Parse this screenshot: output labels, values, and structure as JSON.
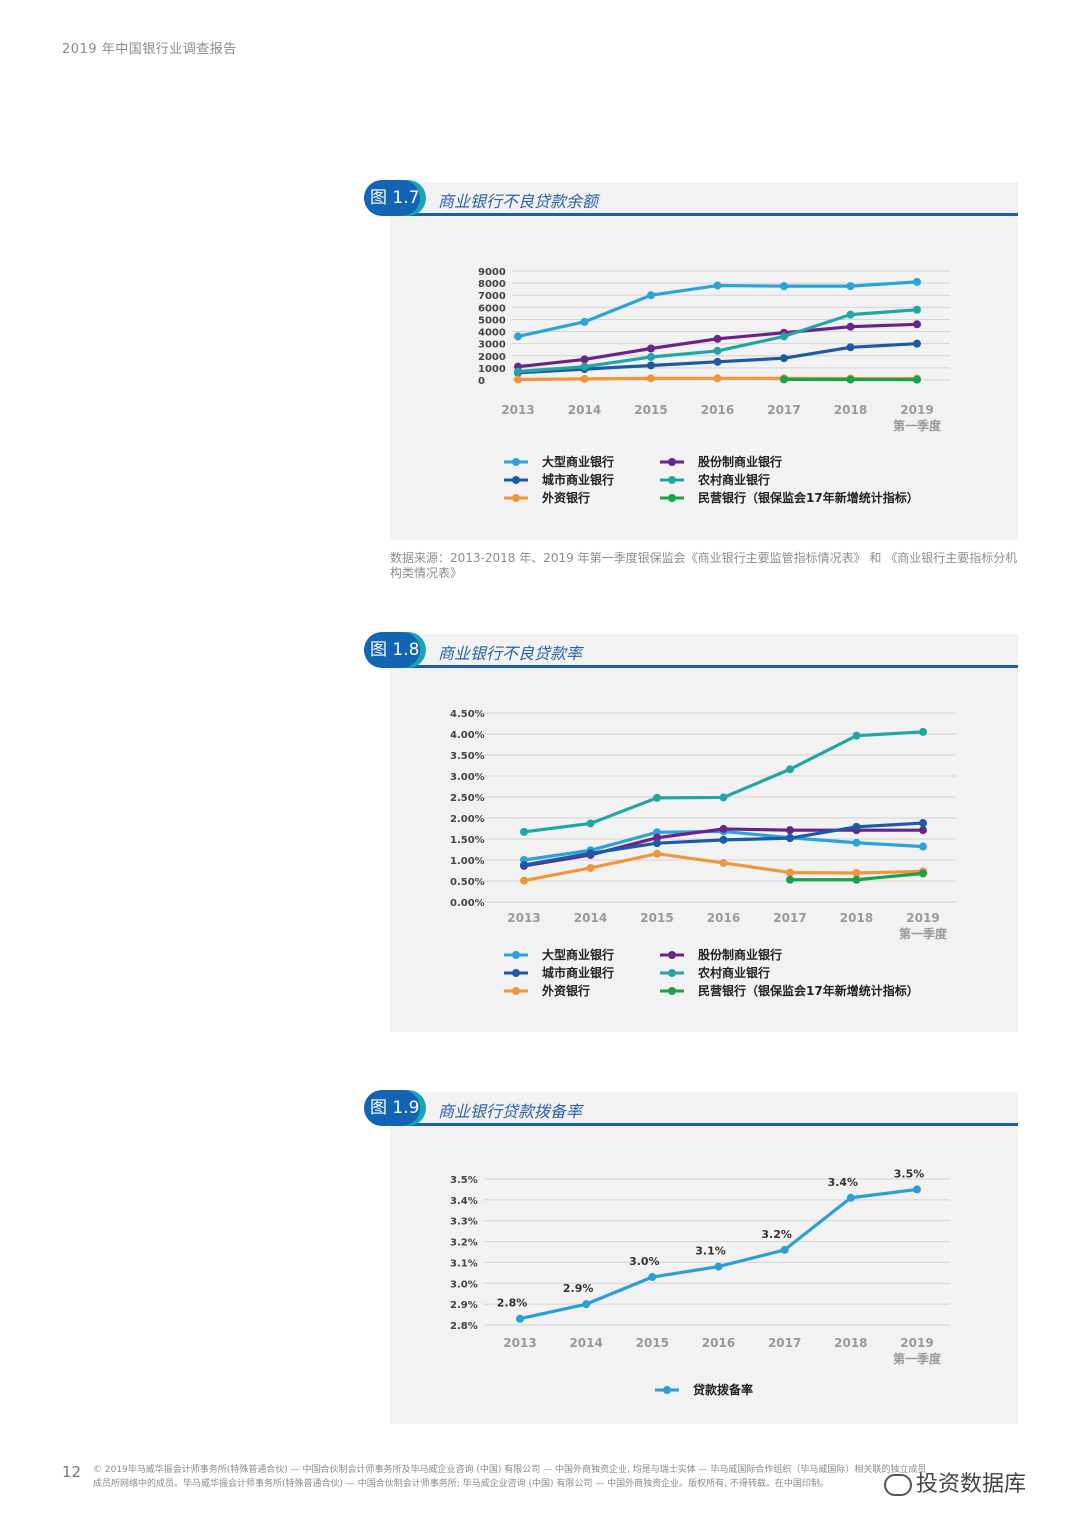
{
  "header": {
    "title": "2019 年中国银行业调查报告"
  },
  "figures": [
    {
      "badge": "图 1.7",
      "title": "商业银行不良贷款余额",
      "source": "数据来源：2013-2018 年、2019 年第一季度银保监会《商业银行主要监管指标情况表》 和 《商业银行主要指标分机构类情况表》"
    },
    {
      "badge": "图 1.8",
      "title": "商业银行不良贷款率"
    },
    {
      "badge": "图 1.9",
      "title": "商业银行贷款拨备率"
    }
  ],
  "colors": {
    "large": "#29a3d9",
    "city": "#1c5aa6",
    "foreign": "#f0963a",
    "joint": "#6b2389",
    "rural": "#21a7a3",
    "private": "#17a34a",
    "provision": "#2b9ed8"
  },
  "chart_data": [
    {
      "type": "line",
      "title": "商业银行不良贷款余额",
      "x": [
        "2013",
        "2014",
        "2015",
        "2016",
        "2017",
        "2018",
        "2019\n第一季度"
      ],
      "y_ticks": [
        "9000",
        "8000",
        "7000",
        "6000",
        "5000",
        "4000",
        "3000",
        "2000",
        "1000",
        "0"
      ],
      "ylim": [
        0,
        9000
      ],
      "grid": true,
      "legend_position": "bottom",
      "series": [
        {
          "name": "大型商业银行",
          "color_key": "large",
          "values": [
            3600,
            4800,
            7000,
            7800,
            7750,
            7750,
            8100
          ]
        },
        {
          "name": "股份制商业银行",
          "color_key": "joint",
          "values": [
            1100,
            1700,
            2600,
            3400,
            3900,
            4400,
            4600
          ]
        },
        {
          "name": "城市商业银行",
          "color_key": "city",
          "values": [
            600,
            900,
            1200,
            1500,
            1800,
            2700,
            3000
          ]
        },
        {
          "name": "农村商业银行",
          "color_key": "rural",
          "values": [
            700,
            1100,
            1900,
            2400,
            3600,
            5400,
            5800
          ]
        },
        {
          "name": "外资银行",
          "color_key": "foreign",
          "values": [
            40,
            90,
            140,
            140,
            140,
            120,
            120
          ]
        },
        {
          "name": "民营银行（银保监会17年新增统计指标）",
          "color_key": "private",
          "values": [
            null,
            null,
            null,
            null,
            50,
            40,
            30
          ]
        }
      ]
    },
    {
      "type": "line",
      "title": "商业银行不良贷款率",
      "x": [
        "2013",
        "2014",
        "2015",
        "2016",
        "2017",
        "2018",
        "2019\n第一季度"
      ],
      "y_ticks": [
        "4.50%",
        "4.00%",
        "3.50%",
        "3.00%",
        "2.50%",
        "2.00%",
        "1.50%",
        "1.00%",
        "0.50%",
        "0.00%"
      ],
      "ylim": [
        0,
        4.5
      ],
      "grid": true,
      "legend_position": "bottom",
      "series": [
        {
          "name": "大型商业银行",
          "color_key": "large",
          "values": [
            1.0,
            1.23,
            1.66,
            1.68,
            1.53,
            1.41,
            1.32
          ]
        },
        {
          "name": "股份制商业银行",
          "color_key": "joint",
          "values": [
            0.86,
            1.12,
            1.53,
            1.74,
            1.71,
            1.71,
            1.71
          ]
        },
        {
          "name": "城市商业银行",
          "color_key": "city",
          "values": [
            0.88,
            1.16,
            1.4,
            1.48,
            1.52,
            1.79,
            1.88
          ]
        },
        {
          "name": "农村商业银行",
          "color_key": "rural",
          "values": [
            1.67,
            1.87,
            2.48,
            2.49,
            3.16,
            3.96,
            4.05
          ]
        },
        {
          "name": "外资银行",
          "color_key": "foreign",
          "values": [
            0.51,
            0.81,
            1.15,
            0.93,
            0.7,
            0.69,
            0.73
          ]
        },
        {
          "name": "民营银行（银保监会17年新增统计指标）",
          "color_key": "private",
          "values": [
            null,
            null,
            null,
            null,
            0.53,
            0.53,
            0.68
          ]
        }
      ]
    },
    {
      "type": "line",
      "title": "商业银行贷款拨备率",
      "x": [
        "2013",
        "2014",
        "2015",
        "2016",
        "2017",
        "2018",
        "2019\n第一季度"
      ],
      "y_ticks": [
        "3.5%",
        "3.4%",
        "3.3%",
        "3.2%",
        "3.1%",
        "3.0%",
        "2.9%",
        "2.8%"
      ],
      "ylim": [
        2.8,
        3.5
      ],
      "grid": true,
      "legend_position": "bottom",
      "series": [
        {
          "name": "贷款拨备率",
          "color_key": "provision",
          "values": [
            2.83,
            2.9,
            3.03,
            3.08,
            3.16,
            3.41,
            3.45
          ],
          "labels": [
            "2.8%",
            "2.9%",
            "3.0%",
            "3.1%",
            "3.2%",
            "3.4%",
            "3.5%"
          ]
        }
      ]
    }
  ],
  "footer": {
    "page_number": "12",
    "line1": "© 2019毕马威华振会计师事务所(特殊普通合伙) — 中国合伙制会计师事务所及毕马威企业咨询 (中国) 有限公司 — 中国外商独资企业, 均是与瑞士实体 — 毕马威国际合作组织（毕马威国际）相关联的独立成员",
    "line2": "成员所网络中的成员。毕马威华振会计师事务所(特殊普通合伙) — 中国合伙制会计师事务所; 毕马威企业咨询 (中国) 有限公司 — 中国外商独资企业。版权所有, 不得转载。在中国印制。",
    "watermark": "投资数据库"
  }
}
